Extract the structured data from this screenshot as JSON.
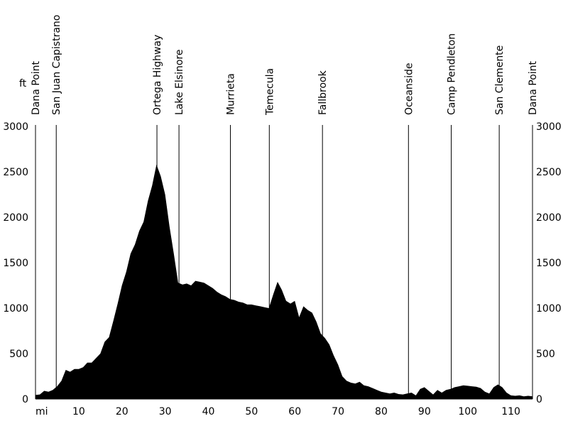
{
  "chart_data": {
    "type": "area",
    "y_unit_label": "ft",
    "x_unit_label": "mi",
    "xlim": [
      0,
      115
    ],
    "ylim": [
      0,
      3000
    ],
    "x_ticks": [
      10,
      20,
      30,
      40,
      50,
      60,
      70,
      80,
      90,
      100,
      110
    ],
    "y_ticks": [
      0,
      500,
      1000,
      1500,
      2000,
      2500,
      3000
    ],
    "fill_color": "#000000",
    "locations": [
      {
        "name": "Dana Point",
        "mile": 0
      },
      {
        "name": "San Juan Capistrano",
        "mile": 4.8
      },
      {
        "name": "Ortega Highway",
        "mile": 28.1
      },
      {
        "name": "Lake Elsinore",
        "mile": 33.2
      },
      {
        "name": "Murrieta",
        "mile": 45.1
      },
      {
        "name": "Temecula",
        "mile": 54.1
      },
      {
        "name": "Fallbrook",
        "mile": 66.4
      },
      {
        "name": "Oceanside",
        "mile": 86.3
      },
      {
        "name": "Camp Pendleton",
        "mile": 96.2
      },
      {
        "name": "San Clemente",
        "mile": 107.3
      },
      {
        "name": "Dana Point",
        "mile": 115
      }
    ],
    "series": [
      {
        "points": [
          [
            0,
            45
          ],
          [
            1,
            50
          ],
          [
            2,
            90
          ],
          [
            3,
            80
          ],
          [
            4,
            100
          ],
          [
            5,
            140
          ],
          [
            6,
            200
          ],
          [
            7,
            320
          ],
          [
            8,
            300
          ],
          [
            9,
            330
          ],
          [
            10,
            330
          ],
          [
            11,
            350
          ],
          [
            12,
            400
          ],
          [
            13,
            400
          ],
          [
            14,
            450
          ],
          [
            15,
            500
          ],
          [
            16,
            630
          ],
          [
            17,
            680
          ],
          [
            18,
            860
          ],
          [
            19,
            1050
          ],
          [
            20,
            1250
          ],
          [
            21,
            1400
          ],
          [
            22,
            1600
          ],
          [
            23,
            1700
          ],
          [
            24,
            1850
          ],
          [
            25,
            1950
          ],
          [
            26,
            2180
          ],
          [
            27,
            2350
          ],
          [
            28,
            2580
          ],
          [
            29,
            2450
          ],
          [
            30,
            2250
          ],
          [
            31,
            1900
          ],
          [
            32,
            1600
          ],
          [
            33,
            1280
          ],
          [
            34,
            1260
          ],
          [
            35,
            1270
          ],
          [
            36,
            1250
          ],
          [
            37,
            1300
          ],
          [
            38,
            1290
          ],
          [
            39,
            1280
          ],
          [
            40,
            1250
          ],
          [
            41,
            1220
          ],
          [
            42,
            1180
          ],
          [
            43,
            1150
          ],
          [
            44,
            1130
          ],
          [
            45,
            1100
          ],
          [
            46,
            1090
          ],
          [
            47,
            1070
          ],
          [
            48,
            1060
          ],
          [
            49,
            1040
          ],
          [
            50,
            1040
          ],
          [
            51,
            1030
          ],
          [
            52,
            1020
          ],
          [
            53,
            1010
          ],
          [
            54,
            1000
          ],
          [
            55,
            1150
          ],
          [
            56,
            1290
          ],
          [
            57,
            1200
          ],
          [
            58,
            1080
          ],
          [
            59,
            1050
          ],
          [
            60,
            1080
          ],
          [
            61,
            900
          ],
          [
            62,
            1020
          ],
          [
            63,
            980
          ],
          [
            64,
            950
          ],
          [
            65,
            850
          ],
          [
            66,
            720
          ],
          [
            67,
            670
          ],
          [
            68,
            600
          ],
          [
            69,
            480
          ],
          [
            70,
            380
          ],
          [
            71,
            250
          ],
          [
            72,
            200
          ],
          [
            73,
            180
          ],
          [
            74,
            170
          ],
          [
            75,
            190
          ],
          [
            76,
            150
          ],
          [
            77,
            140
          ],
          [
            78,
            120
          ],
          [
            79,
            100
          ],
          [
            80,
            80
          ],
          [
            81,
            70
          ],
          [
            82,
            60
          ],
          [
            83,
            70
          ],
          [
            84,
            55
          ],
          [
            85,
            50
          ],
          [
            86,
            60
          ],
          [
            87,
            70
          ],
          [
            88,
            40
          ],
          [
            89,
            110
          ],
          [
            90,
            130
          ],
          [
            91,
            90
          ],
          [
            92,
            50
          ],
          [
            93,
            100
          ],
          [
            94,
            70
          ],
          [
            95,
            100
          ],
          [
            96,
            110
          ],
          [
            97,
            130
          ],
          [
            98,
            140
          ],
          [
            99,
            150
          ],
          [
            100,
            145
          ],
          [
            101,
            140
          ],
          [
            102,
            135
          ],
          [
            103,
            120
          ],
          [
            104,
            80
          ],
          [
            105,
            60
          ],
          [
            106,
            130
          ],
          [
            107,
            160
          ],
          [
            108,
            130
          ],
          [
            109,
            70
          ],
          [
            110,
            40
          ],
          [
            111,
            35
          ],
          [
            112,
            40
          ],
          [
            113,
            30
          ],
          [
            114,
            35
          ],
          [
            115,
            30
          ]
        ]
      }
    ]
  }
}
